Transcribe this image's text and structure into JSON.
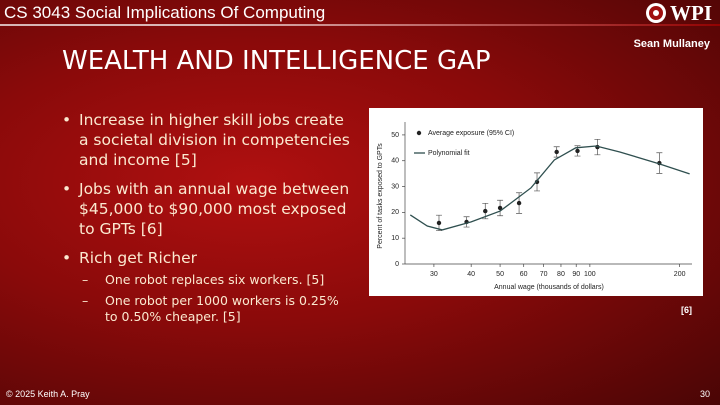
{
  "header": {
    "course": "CS 3043 Social Implications Of Computing",
    "logo": "WPI",
    "author": "Sean Mullaney"
  },
  "title": "WEALTH AND INTELLIGENCE GAP",
  "bullets": [
    {
      "text": "Increase in higher skill jobs create a societal division in competencies and income [5]",
      "sub": []
    },
    {
      "text": "Jobs with an annual wage between $45,000 to $90,000 most exposed to GPTs [6]",
      "sub": []
    },
    {
      "text": "Rich get Richer",
      "sub": [
        "One robot replaces six workers. [5]",
        "One robot per 1000 workers is 0.25% to 0.50% cheaper. [5]"
      ]
    }
  ],
  "figure_source": "[6]",
  "footer": {
    "copyright": "© 2025 Keith A. Pray",
    "page": "30"
  },
  "chart_data": {
    "type": "scatter",
    "x_label": "Annual wage (thousands of dollars)",
    "y_label": "Percent of tasks exposed to GPTs",
    "xlim": [
      24,
      220
    ],
    "xticks": [
      30,
      40,
      50,
      60,
      70,
      80,
      90,
      100,
      200
    ],
    "x_log": true,
    "ylim": [
      0,
      55
    ],
    "yticks": [
      0,
      10,
      20,
      30,
      40,
      50
    ],
    "series": [
      {
        "name": "Average exposure (95% CI)",
        "type": "scatter",
        "color": "#222222",
        "x": [
          31.2,
          38.6,
          44.6,
          50,
          57.9,
          66.5,
          77.4,
          90.9,
          106,
          171
        ],
        "values": [
          15.9,
          16.3,
          20.5,
          21.7,
          23.6,
          31.8,
          43.4,
          43.8,
          45.3,
          39.1
        ],
        "errors": [
          3,
          2,
          3,
          3,
          4,
          3.5,
          2,
          2,
          3,
          4
        ]
      },
      {
        "name": "Polynomial fit",
        "type": "line",
        "color": "#2f4f4f",
        "x": [
          25,
          28.5,
          32,
          40,
          50,
          63.5,
          76,
          89.7,
          105,
          126,
          171,
          216
        ],
        "values": [
          19,
          14.7,
          13.2,
          16.3,
          20.5,
          29.5,
          40.3,
          45,
          45.7,
          43.4,
          38.8,
          34.9
        ]
      }
    ]
  }
}
